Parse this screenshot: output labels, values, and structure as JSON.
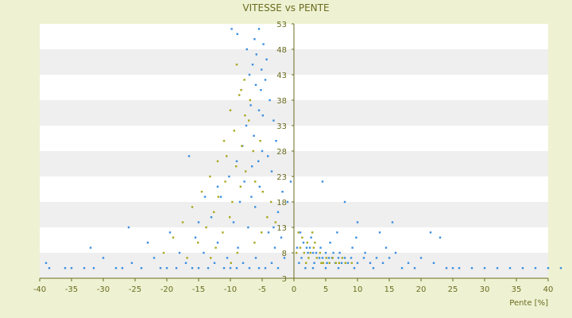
{
  "chart_data": {
    "type": "scatter",
    "title": "VITESSE vs PENTE",
    "xlabel": "Pente [%]",
    "ylabel": "",
    "xlim": [
      -40,
      40
    ],
    "ylim": [
      3,
      53
    ],
    "x_ticks": [
      "-40",
      "-35",
      "-30",
      "-25",
      "-20",
      "-15",
      "-10",
      "-5",
      "0",
      "5",
      "10",
      "15",
      "20",
      "25",
      "30",
      "35",
      "40"
    ],
    "y_ticks": [
      "53",
      "48",
      "43",
      "38",
      "33",
      "28",
      "23",
      "18",
      "13",
      "8",
      "3"
    ],
    "grid": "alternating horizontal bands",
    "legend": "none",
    "colors": {
      "background": "#eef2d2",
      "band_white": "#ffffff",
      "band_grey": "#efefef",
      "axis": "#6b6b20",
      "series_blue": "#3b8ede",
      "series_olive": "#a8a820"
    },
    "series": [
      {
        "color": "#3b8ede",
        "points": [
          [
            -5.5,
            52
          ],
          [
            -6.2,
            50
          ],
          [
            -4.8,
            49
          ],
          [
            -5.9,
            47
          ],
          [
            -6.5,
            45
          ],
          [
            -5.1,
            44
          ],
          [
            -4.3,
            46
          ],
          [
            -7.0,
            43
          ],
          [
            -6.0,
            41
          ],
          [
            -5.2,
            40
          ],
          [
            -4.5,
            42
          ],
          [
            -3.8,
            38
          ],
          [
            -6.8,
            37
          ],
          [
            -5.5,
            36
          ],
          [
            -4.9,
            35
          ],
          [
            -3.2,
            34
          ],
          [
            -7.5,
            33
          ],
          [
            -6.3,
            31
          ],
          [
            -2.8,
            30
          ],
          [
            -8.1,
            29
          ],
          [
            -5.0,
            28
          ],
          [
            -4.1,
            27
          ],
          [
            -9.0,
            26
          ],
          [
            -6.6,
            25
          ],
          [
            -3.5,
            24
          ],
          [
            -10.2,
            23
          ],
          [
            -7.8,
            22
          ],
          [
            -5.4,
            21
          ],
          [
            -1.8,
            20
          ],
          [
            -11.5,
            19
          ],
          [
            -8.5,
            18
          ],
          [
            -6.1,
            17
          ],
          [
            -2.5,
            16
          ],
          [
            -13.0,
            15
          ],
          [
            -9.5,
            14
          ],
          [
            -7.2,
            13
          ],
          [
            -4.0,
            12
          ],
          [
            -15.5,
            11
          ],
          [
            -12.0,
            10
          ],
          [
            -8.8,
            9
          ],
          [
            -3.0,
            9
          ],
          [
            -18.0,
            8
          ],
          [
            -14.2,
            8
          ],
          [
            -10.5,
            7
          ],
          [
            -6.0,
            7
          ],
          [
            -22.0,
            7
          ],
          [
            -25.5,
            6
          ],
          [
            -30.0,
            7
          ],
          [
            -17.0,
            6
          ],
          [
            -12.5,
            6
          ],
          [
            -8.0,
            6
          ],
          [
            -20.0,
            5
          ],
          [
            -28.0,
            5
          ],
          [
            -33.0,
            5
          ],
          [
            -15.0,
            5
          ],
          [
            -39.0,
            6
          ],
          [
            -36.0,
            5
          ],
          [
            -10.0,
            5
          ],
          [
            -5.5,
            5
          ],
          [
            -2.5,
            5
          ],
          [
            -38.5,
            5
          ],
          [
            -35.0,
            5
          ],
          [
            -31.5,
            5
          ],
          [
            -27.0,
            5
          ],
          [
            -24.0,
            5
          ],
          [
            -21.0,
            5
          ],
          [
            -18.5,
            5
          ],
          [
            -16.0,
            5
          ],
          [
            -13.5,
            5
          ],
          [
            -11.0,
            5
          ],
          [
            -9.0,
            5
          ],
          [
            -7.0,
            5
          ],
          [
            -4.5,
            5
          ],
          [
            -3.5,
            6
          ],
          [
            -1.5,
            7
          ],
          [
            -2.0,
            11
          ],
          [
            -3.2,
            13
          ],
          [
            -0.5,
            22
          ],
          [
            -1.0,
            18
          ],
          [
            -12.0,
            21
          ],
          [
            -15.0,
            14
          ],
          [
            -19.5,
            12
          ],
          [
            -23.0,
            10
          ],
          [
            -26.0,
            13
          ],
          [
            -32.0,
            9
          ],
          [
            -9.8,
            52
          ],
          [
            -8.9,
            51
          ],
          [
            -7.4,
            48
          ],
          [
            -5.6,
            26
          ],
          [
            -6.7,
            19
          ],
          [
            -14.0,
            19
          ],
          [
            -16.5,
            27
          ],
          [
            1.0,
            12
          ],
          [
            1.5,
            10
          ],
          [
            2.0,
            9
          ],
          [
            2.5,
            9
          ],
          [
            3.0,
            8
          ],
          [
            3.5,
            8
          ],
          [
            4.0,
            7
          ],
          [
            4.5,
            7
          ],
          [
            5.0,
            8
          ],
          [
            5.5,
            7
          ],
          [
            6.0,
            7
          ],
          [
            6.5,
            6
          ],
          [
            7.0,
            7
          ],
          [
            7.5,
            6
          ],
          [
            8.0,
            7
          ],
          [
            8.5,
            6
          ],
          [
            9.0,
            7
          ],
          [
            10.0,
            6
          ],
          [
            11.0,
            7
          ],
          [
            12.0,
            6
          ],
          [
            13.0,
            7
          ],
          [
            14.0,
            6
          ],
          [
            15.0,
            7
          ],
          [
            16.0,
            8
          ],
          [
            18.0,
            6
          ],
          [
            20.0,
            7
          ],
          [
            22.0,
            6
          ],
          [
            24.0,
            5
          ],
          [
            26.0,
            5
          ],
          [
            28.0,
            5
          ],
          [
            30.0,
            5
          ],
          [
            32.0,
            5
          ],
          [
            34.0,
            5
          ],
          [
            36.0,
            5
          ],
          [
            38.0,
            5
          ],
          [
            40.0,
            5
          ],
          [
            42.0,
            5
          ],
          [
            4.5,
            22
          ],
          [
            8.0,
            18
          ],
          [
            10.0,
            14
          ],
          [
            13.5,
            12
          ],
          [
            15.5,
            14
          ],
          [
            21.5,
            12
          ],
          [
            23.0,
            11
          ],
          [
            0.8,
            6
          ],
          [
            1.8,
            5
          ],
          [
            3.0,
            5
          ],
          [
            5.0,
            5
          ],
          [
            7.0,
            5
          ],
          [
            9.5,
            5
          ],
          [
            12.5,
            5
          ],
          [
            17.0,
            5
          ],
          [
            19.0,
            5
          ],
          [
            25.0,
            5
          ],
          [
            1.2,
            7
          ],
          [
            2.2,
            8
          ],
          [
            3.2,
            6
          ],
          [
            4.2,
            9
          ],
          [
            5.2,
            6
          ],
          [
            6.2,
            8
          ],
          [
            7.2,
            8
          ],
          [
            9.2,
            9
          ],
          [
            11.2,
            8
          ],
          [
            14.5,
            9
          ],
          [
            5.7,
            10
          ],
          [
            0.5,
            9
          ],
          [
            2.7,
            11
          ],
          [
            6.8,
            12
          ],
          [
            9.8,
            11
          ]
        ]
      },
      {
        "color": "#a8a820",
        "points": [
          [
            -9.0,
            45
          ],
          [
            -7.8,
            42
          ],
          [
            -8.6,
            39
          ],
          [
            -6.9,
            38
          ],
          [
            -10.0,
            36
          ],
          [
            -7.1,
            34
          ],
          [
            -9.4,
            32
          ],
          [
            -11.0,
            30
          ],
          [
            -8.2,
            29
          ],
          [
            -6.4,
            28
          ],
          [
            -10.6,
            27
          ],
          [
            -12.0,
            26
          ],
          [
            -9.1,
            25
          ],
          [
            -7.6,
            24
          ],
          [
            -13.2,
            23
          ],
          [
            -10.8,
            22
          ],
          [
            -8.4,
            21
          ],
          [
            -14.5,
            20
          ],
          [
            -11.9,
            19
          ],
          [
            -9.7,
            18
          ],
          [
            -16.0,
            17
          ],
          [
            -12.6,
            16
          ],
          [
            -10.1,
            15
          ],
          [
            -17.5,
            14
          ],
          [
            -13.8,
            13
          ],
          [
            -11.2,
            12
          ],
          [
            -19.0,
            11
          ],
          [
            -15.1,
            10
          ],
          [
            -12.3,
            9
          ],
          [
            -8.9,
            8
          ],
          [
            -20.5,
            8
          ],
          [
            -16.8,
            7
          ],
          [
            -13.1,
            7
          ],
          [
            -9.9,
            6
          ],
          [
            -6.2,
            10
          ],
          [
            -5.1,
            12
          ],
          [
            -4.2,
            15
          ],
          [
            -3.6,
            18
          ],
          [
            -6.1,
            22
          ],
          [
            -5.3,
            30
          ],
          [
            -7.7,
            35
          ],
          [
            -8.3,
            40
          ],
          [
            -4.9,
            20
          ],
          [
            -2.9,
            14
          ],
          [
            1.0,
            9
          ],
          [
            1.6,
            8
          ],
          [
            2.1,
            10
          ],
          [
            2.6,
            8
          ],
          [
            3.1,
            9
          ],
          [
            3.6,
            7
          ],
          [
            4.1,
            8
          ],
          [
            4.6,
            6
          ],
          [
            5.1,
            7
          ],
          [
            5.6,
            6
          ],
          [
            6.1,
            7
          ],
          [
            6.6,
            6
          ],
          [
            7.1,
            6
          ],
          [
            7.6,
            7
          ],
          [
            8.1,
            6
          ],
          [
            9.1,
            6
          ],
          [
            1.3,
            11
          ],
          [
            2.3,
            7
          ],
          [
            3.3,
            10
          ],
          [
            4.3,
            6
          ],
          [
            0.7,
            12
          ],
          [
            0.4,
            8
          ],
          [
            1.9,
            6
          ],
          [
            2.9,
            12
          ]
        ]
      }
    ]
  }
}
